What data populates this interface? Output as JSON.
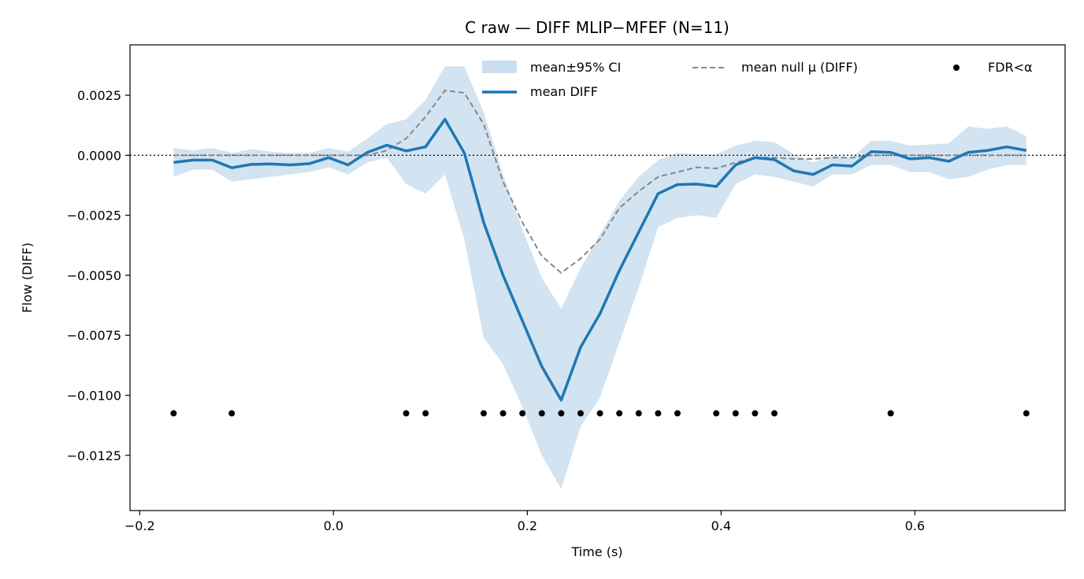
{
  "chart_data": {
    "type": "line",
    "title": "C raw — DIFF MLIP−MFEF (N=11)",
    "xlabel": "Time (s)",
    "ylabel": "Flow (DIFF)",
    "xlim": [
      -0.21,
      0.755
    ],
    "ylim": [
      -0.0148,
      0.0046
    ],
    "grid": false,
    "legend_position": "top-right",
    "xticks": [
      -0.2,
      0.0,
      0.2,
      0.4,
      0.6
    ],
    "xtick_labels": [
      "−0.2",
      "0.0",
      "0.2",
      "0.4",
      "0.6"
    ],
    "yticks": [
      0.0025,
      0.0,
      -0.0025,
      -0.005,
      -0.0075,
      -0.01,
      -0.0125
    ],
    "ytick_labels": [
      "0.0025",
      "0.0000",
      "−0.0025",
      "−0.0050",
      "−0.0075",
      "−0.0100",
      "−0.0125"
    ],
    "zero_line": 0,
    "x": [
      -0.165,
      -0.145,
      -0.125,
      -0.105,
      -0.085,
      -0.065,
      -0.045,
      -0.025,
      -0.005,
      0.015,
      0.035,
      0.055,
      0.075,
      0.095,
      0.115,
      0.135,
      0.155,
      0.175,
      0.195,
      0.215,
      0.235,
      0.255,
      0.275,
      0.295,
      0.315,
      0.335,
      0.355,
      0.375,
      0.395,
      0.415,
      0.435,
      0.455,
      0.475,
      0.495,
      0.515,
      0.535,
      0.555,
      0.575,
      0.595,
      0.615,
      0.635,
      0.655,
      0.675,
      0.695,
      0.715
    ],
    "series": [
      {
        "name": "mean DIFF",
        "color": "#1f77b4",
        "values": [
          -0.0003,
          -0.0002,
          -0.0002,
          -0.00052,
          -0.00038,
          -0.00036,
          -0.0004,
          -0.00035,
          -0.0001,
          -0.0004,
          0.00012,
          0.00042,
          0.00018,
          0.00035,
          0.0015,
          0.0001,
          -0.0028,
          -0.005,
          -0.0069,
          -0.0088,
          -0.0102,
          -0.008,
          -0.0066,
          -0.0048,
          -0.0032,
          -0.0016,
          -0.00122,
          -0.0012,
          -0.0013,
          -0.0004,
          -0.0001,
          -0.00018,
          -0.00065,
          -0.0008,
          -0.0004,
          -0.00045,
          0.00015,
          0.00012,
          -0.00015,
          -0.0001,
          -0.00025,
          0.00012,
          0.0002,
          0.00035,
          0.0002
        ]
      },
      {
        "name": "mean null μ (DIFF)",
        "color": "#888888",
        "values": [
          0.0,
          0.0,
          0.0,
          0.0,
          0.0,
          0.0,
          0.0,
          0.0,
          0.0,
          0.0,
          0.0,
          0.0002,
          0.0007,
          0.0016,
          0.0027,
          0.0026,
          0.0013,
          -0.0011,
          -0.0028,
          -0.0042,
          -0.0049,
          -0.0043,
          -0.0035,
          -0.0022,
          -0.0015,
          -0.0009,
          -0.0007,
          -0.0005,
          -0.00055,
          -0.0003,
          -0.0001,
          -0.0001,
          -0.00015,
          -0.00015,
          -0.0001,
          -0.0001,
          0.0,
          0.0,
          0.0,
          0.0,
          0.0,
          0.0,
          0.0,
          0.0,
          0.0
        ]
      }
    ],
    "ci_band": {
      "name": "mean±95% CI",
      "color": "#a6c8e4",
      "lower": [
        -0.0009,
        -0.0006,
        -0.0006,
        -0.0011,
        -0.001,
        -0.0009,
        -0.0008,
        -0.0007,
        -0.0005,
        -0.0008,
        -0.0003,
        -0.0001,
        -0.0012,
        -0.0016,
        -0.0008,
        -0.0035,
        -0.0076,
        -0.0087,
        -0.0105,
        -0.0125,
        -0.0139,
        -0.0113,
        -0.0101,
        -0.0078,
        -0.0055,
        -0.003,
        -0.0026,
        -0.0025,
        -0.0026,
        -0.0012,
        -0.0008,
        -0.0009,
        -0.0011,
        -0.0013,
        -0.0008,
        -0.0008,
        -0.0004,
        -0.0004,
        -0.0007,
        -0.0007,
        -0.001,
        -0.0009,
        -0.0006,
        -0.0004,
        -0.0004
      ],
      "upper": [
        0.0003,
        0.0002,
        0.0003,
        0.0001,
        0.00025,
        0.00015,
        0.0001,
        0.0001,
        0.0003,
        0.00015,
        0.0007,
        0.0013,
        0.0015,
        0.0023,
        0.0037,
        0.0037,
        0.0018,
        -0.0008,
        -0.0031,
        -0.0051,
        -0.0064,
        -0.0047,
        -0.0033,
        -0.0019,
        -0.0009,
        -0.0002,
        0.0001,
        5e-05,
        5e-05,
        0.0004,
        0.0006,
        0.00055,
        5e-05,
        -0.0003,
        0.0,
        -0.0001,
        0.0006,
        0.0006,
        0.0004,
        0.00045,
        0.0005,
        0.0012,
        0.0011,
        0.0012,
        0.0008
      ]
    },
    "significant_points": {
      "name": "FDR<α",
      "color": "#000000",
      "y": -0.01075,
      "x": [
        -0.165,
        -0.105,
        0.075,
        0.095,
        0.155,
        0.175,
        0.195,
        0.215,
        0.235,
        0.255,
        0.275,
        0.295,
        0.315,
        0.335,
        0.355,
        0.395,
        0.415,
        0.435,
        0.455,
        0.575,
        0.715
      ]
    }
  }
}
